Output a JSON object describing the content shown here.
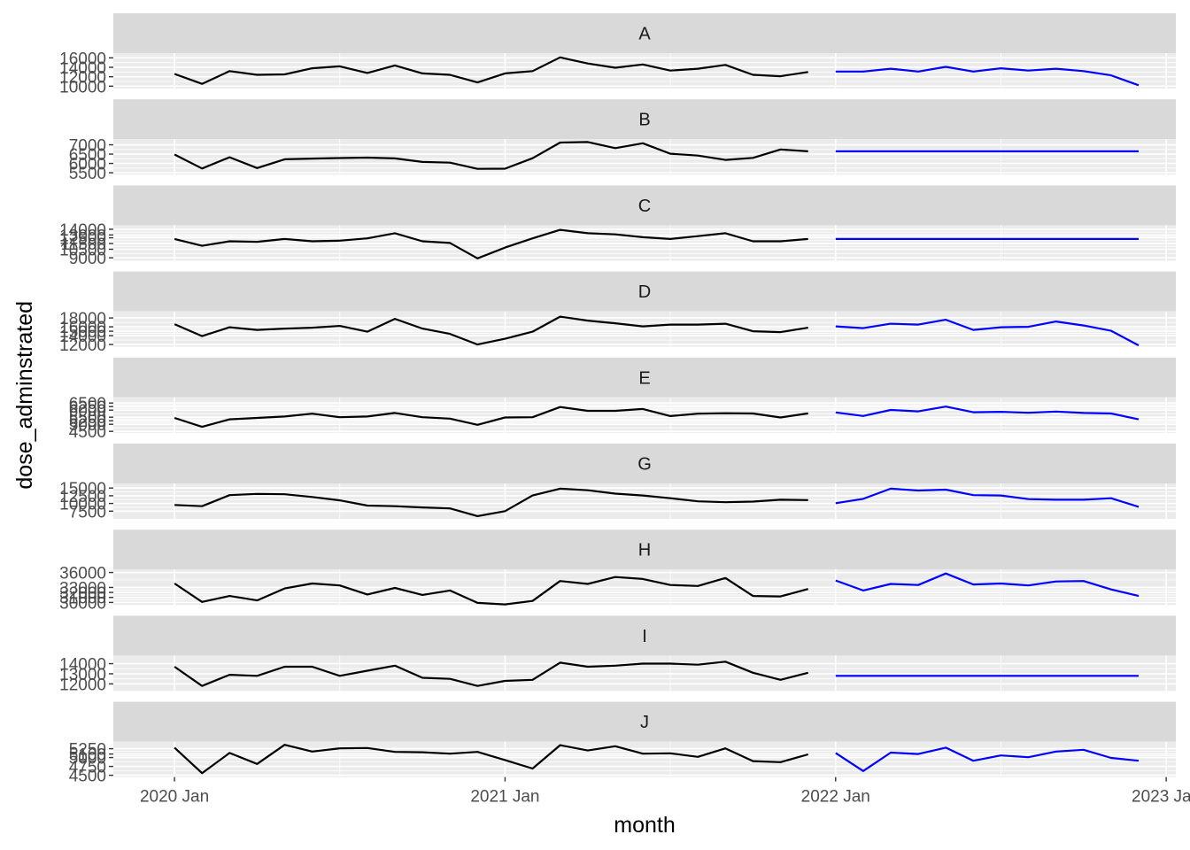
{
  "chart_data": {
    "type": "line",
    "xlabel": "month",
    "ylabel": "dose_adminstrated",
    "x_ticks": [
      "2020 Jan",
      "2021 Jan",
      "2022 Jan",
      "2023 Jan"
    ],
    "x_range": [
      "2019-11",
      "2023-01"
    ],
    "history_months": [
      "2020-01",
      "2020-02",
      "2020-03",
      "2020-04",
      "2020-05",
      "2020-06",
      "2020-07",
      "2020-08",
      "2020-09",
      "2020-10",
      "2020-11",
      "2020-12",
      "2021-01",
      "2021-02",
      "2021-03",
      "2021-04",
      "2021-05",
      "2021-06",
      "2021-07",
      "2021-08",
      "2021-09",
      "2021-10",
      "2021-11",
      "2021-12"
    ],
    "forecast_months": [
      "2022-01",
      "2022-02",
      "2022-03",
      "2022-04",
      "2022-05",
      "2022-06",
      "2022-07",
      "2022-08",
      "2022-09",
      "2022-10",
      "2022-11",
      "2022-12"
    ],
    "colors": {
      "history": "#000000",
      "forecast": "#0000ff",
      "strip": "#d9d9d9",
      "panel": "#ebebeb",
      "grid": "#ffffff"
    },
    "grid": true,
    "facets": [
      {
        "label": "A",
        "ylim": [
          9500,
          17000
        ],
        "y_ticks": [
          10000,
          12000,
          14000,
          16000
        ],
        "y_tick_labels": [
          "10000",
          "12000",
          "14000",
          "16000"
        ],
        "history": [
          12600,
          10500,
          13200,
          12400,
          12500,
          13800,
          14200,
          12800,
          14400,
          12700,
          12400,
          10800,
          12700,
          13200,
          16100,
          14800,
          13900,
          14600,
          13300,
          13700,
          14500,
          12400,
          12100,
          13000
        ],
        "forecast": [
          13100,
          13100,
          13700,
          13100,
          14100,
          13100,
          13800,
          13300,
          13700,
          13200,
          12300,
          10200
        ]
      },
      {
        "label": "B",
        "ylim": [
          5400,
          7300
        ],
        "y_ticks": [
          5500,
          6000,
          6500,
          7000
        ],
        "y_tick_labels": [
          "5500",
          "6000",
          "6500",
          "7000"
        ],
        "history": [
          6480,
          5730,
          6330,
          5750,
          6220,
          6260,
          6290,
          6310,
          6270,
          6080,
          6040,
          5710,
          5720,
          6280,
          7120,
          7150,
          6820,
          7080,
          6520,
          6420,
          6190,
          6300,
          6750,
          6650
        ],
        "forecast": [
          6650,
          6650,
          6650,
          6650,
          6650,
          6650,
          6650,
          6650,
          6650,
          6650,
          6650,
          6650
        ]
      },
      {
        "label": "C",
        "ylim": [
          8500,
          14700
        ],
        "y_ticks": [
          9000,
          10500,
          11500,
          12500,
          13000,
          14000
        ],
        "y_tick_labels": [
          "9000",
          "10500",
          "11500",
          "12500",
          "13000",
          "14000"
        ],
        "history": [
          12300,
          11100,
          11900,
          11800,
          12300,
          11900,
          12000,
          12400,
          13300,
          11900,
          11600,
          8900,
          10800,
          12400,
          13900,
          13300,
          13100,
          12600,
          12300,
          12800,
          13300,
          11900,
          11900,
          12300
        ],
        "forecast": [
          12300,
          12300,
          12300,
          12300,
          12300,
          12300,
          12300,
          12300,
          12300,
          12300,
          12300,
          12300
        ]
      },
      {
        "label": "D",
        "ylim": [
          11500,
          19500
        ],
        "y_ticks": [
          12000,
          14000,
          15000,
          16000,
          18000
        ],
        "y_tick_labels": [
          "12000",
          "14000",
          "15000",
          "16000",
          "18000"
        ],
        "history": [
          16600,
          13900,
          15900,
          15300,
          15600,
          15800,
          16200,
          14900,
          17800,
          15600,
          14400,
          12000,
          13300,
          14900,
          18300,
          17400,
          16800,
          16100,
          16500,
          16500,
          16700,
          15000,
          14800,
          15800
        ],
        "forecast": [
          16100,
          15700,
          16700,
          16500,
          17600,
          15300,
          15900,
          16000,
          17200,
          16300,
          15100,
          11800
        ]
      },
      {
        "label": "E",
        "ylim": [
          4400,
          6900
        ],
        "y_ticks": [
          4500,
          5000,
          5250,
          5500,
          6000,
          6250,
          6500
        ],
        "y_tick_labels": [
          "4500",
          "5000",
          "5250",
          "5500",
          "6000",
          "6250",
          "6500"
        ],
        "history": [
          5450,
          4820,
          5350,
          5450,
          5550,
          5750,
          5500,
          5550,
          5800,
          5500,
          5400,
          4960,
          5480,
          5500,
          6220,
          5950,
          5950,
          6080,
          5580,
          5750,
          5780,
          5760,
          5480,
          5770
        ],
        "forecast": [
          5840,
          5590,
          6010,
          5910,
          6250,
          5850,
          5880,
          5810,
          5900,
          5800,
          5760,
          5350
        ]
      },
      {
        "label": "G",
        "ylim": [
          5000,
          16500
        ],
        "y_ticks": [
          7500,
          10000,
          12500,
          15000
        ],
        "y_tick_labels": [
          "7500",
          "10000",
          "12500",
          "15000"
        ],
        "history": [
          9500,
          9100,
          12700,
          13100,
          13000,
          12100,
          11000,
          9300,
          9100,
          8700,
          8400,
          5900,
          7500,
          12600,
          14800,
          14300,
          13200,
          12600,
          11700,
          10700,
          10400,
          10600,
          11200,
          11100
        ],
        "forecast": [
          10100,
          11500,
          14800,
          14200,
          14500,
          12700,
          12600,
          11400,
          11200,
          11200,
          11700,
          8900
        ]
      },
      {
        "label": "H",
        "ylim": [
          29500,
          36600
        ],
        "y_ticks": [
          30000,
          31000,
          32000,
          33000,
          36000
        ],
        "y_tick_labels": [
          "30000",
          "31000",
          "32000",
          "33000",
          "36000"
        ],
        "history": [
          33800,
          30100,
          31300,
          30400,
          32800,
          33800,
          33400,
          31600,
          32900,
          31500,
          32400,
          29900,
          29600,
          30300,
          34300,
          33700,
          35100,
          34700,
          33500,
          33300,
          34900,
          31300,
          31200,
          32700
        ],
        "forecast": [
          34400,
          32400,
          33700,
          33500,
          35800,
          33600,
          33800,
          33400,
          34200,
          34300,
          32600,
          31300
        ]
      },
      {
        "label": "I",
        "ylim": [
          11300,
          14800
        ],
        "y_ticks": [
          12000,
          13000,
          14000
        ],
        "y_tick_labels": [
          "12000",
          "13000",
          "14000"
        ],
        "history": [
          13700,
          11800,
          12900,
          12800,
          13700,
          13700,
          12800,
          13300,
          13800,
          12600,
          12500,
          11800,
          12300,
          12400,
          14100,
          13700,
          13800,
          14000,
          14000,
          13900,
          14200,
          13100,
          12400,
          13100
        ],
        "forecast": [
          12800,
          12800,
          12800,
          12800,
          12800,
          12800,
          12800,
          12800,
          12800,
          12800,
          12800,
          12800
        ]
      },
      {
        "label": "J",
        "ylim": [
          4450,
          5450
        ],
        "y_ticks": [
          4500,
          4750,
          5000,
          5100,
          5250
        ],
        "y_tick_labels": [
          "4500",
          "4750",
          "5000",
          "5100",
          "5250"
        ],
        "history": [
          5280,
          4560,
          5130,
          4820,
          5360,
          5170,
          5260,
          5270,
          5160,
          5150,
          5110,
          5160,
          4930,
          4690,
          5350,
          5200,
          5320,
          5110,
          5120,
          5020,
          5260,
          4900,
          4870,
          5090
        ],
        "forecast": [
          5130,
          4620,
          5140,
          5100,
          5280,
          4910,
          5060,
          5010,
          5170,
          5220,
          4990,
          4910
        ]
      }
    ]
  }
}
